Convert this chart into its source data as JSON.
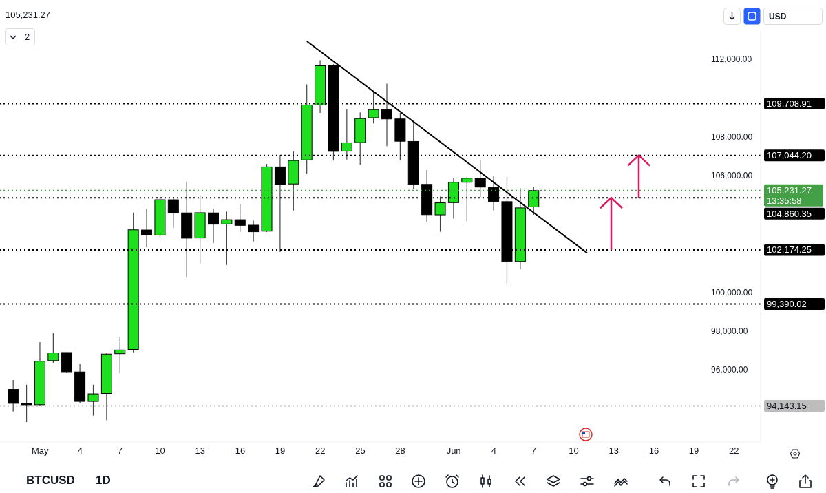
{
  "chart_data": {
    "type": "candlestick",
    "title": "105,231.27",
    "x": [
      "--04-29",
      "--04-30",
      "--05-01",
      "--05-02",
      "--05-03",
      "--05-04",
      "--05-05",
      "--05-06",
      "--05-07",
      "--05-08",
      "--05-09",
      "--05-10",
      "--05-11",
      "--05-12",
      "--05-13",
      "--05-14",
      "--05-15",
      "--05-16",
      "--05-17",
      "--05-18",
      "--05-19",
      "--05-20",
      "--05-21",
      "--05-22",
      "--05-23",
      "--05-24",
      "--05-25",
      "--05-26",
      "--05-27",
      "--05-28",
      "--05-29",
      "--05-30",
      "--05-31",
      "--06-01",
      "--06-02",
      "--06-03",
      "--06-04",
      "--06-05",
      "--06-06",
      "--06-07"
    ],
    "ohlc": [
      [
        94990,
        95475,
        93845,
        94270
      ],
      [
        94250,
        95230,
        93310,
        94200
      ],
      [
        94200,
        97430,
        94150,
        96440
      ],
      [
        96470,
        97890,
        96360,
        96870
      ],
      [
        96890,
        96900,
        95850,
        95900
      ],
      [
        95890,
        96290,
        94280,
        94370
      ],
      [
        94370,
        95230,
        93640,
        94760
      ],
      [
        94780,
        96880,
        93410,
        96810
      ],
      [
        96830,
        97700,
        95820,
        97020
      ],
      [
        97050,
        104100,
        96900,
        103210
      ],
      [
        103200,
        104300,
        102310,
        102940
      ],
      [
        102940,
        104890,
        102820,
        104760
      ],
      [
        104760,
        104890,
        103320,
        104080
      ],
      [
        104080,
        105690,
        100750,
        102780
      ],
      [
        102790,
        104940,
        101460,
        104090
      ],
      [
        104080,
        104300,
        102540,
        103500
      ],
      [
        103510,
        104150,
        101400,
        103730
      ],
      [
        103730,
        104510,
        103100,
        103440
      ],
      [
        103450,
        103680,
        102610,
        103110
      ],
      [
        103140,
        106600,
        103100,
        106450
      ],
      [
        106450,
        107070,
        102070,
        105540
      ],
      [
        105570,
        107250,
        104200,
        106780
      ],
      [
        106810,
        110700,
        106090,
        109640
      ],
      [
        109640,
        111940,
        109230,
        111660
      ],
      [
        111660,
        111740,
        106780,
        107250
      ],
      [
        107260,
        109420,
        106830,
        107690
      ],
      [
        107700,
        109260,
        106570,
        108940
      ],
      [
        108980,
        110350,
        108690,
        109400
      ],
      [
        109400,
        110740,
        107520,
        108920
      ],
      [
        108920,
        109230,
        106780,
        107770
      ],
      [
        107760,
        108810,
        105320,
        105550
      ],
      [
        105550,
        106280,
        103590,
        103990
      ],
      [
        103980,
        104920,
        103110,
        104600
      ],
      [
        104610,
        105860,
        103790,
        105660
      ],
      [
        105660,
        105930,
        103660,
        105870
      ],
      [
        105860,
        106820,
        104900,
        105410
      ],
      [
        105380,
        105970,
        104210,
        104660
      ],
      [
        104660,
        105930,
        100400,
        101580
      ],
      [
        101580,
        105360,
        101190,
        104340
      ],
      [
        104390,
        105400,
        103980,
        105231.27
      ]
    ],
    "colors": [
      "#000000",
      "#000000",
      "#1fe01f",
      "#1fe01f",
      "#000000",
      "#000000",
      "#1fe01f",
      "#1fe01f",
      "#1fe01f",
      "#1fe01f",
      "#000000",
      "#1fe01f",
      "#000000",
      "#000000",
      "#1fe01f",
      "#000000",
      "#1fe01f",
      "#000000",
      "#000000",
      "#1fe01f",
      "#000000",
      "#1fe01f",
      "#1fe01f",
      "#1fe01f",
      "#000000",
      "#1fe01f",
      "#1fe01f",
      "#1fe01f",
      "#000000",
      "#000000",
      "#000000",
      "#000000",
      "#1fe01f",
      "#1fe01f",
      "#1fe01f",
      "#000000",
      "#000000",
      "#000000",
      "#1fe01f",
      "#1fe01f"
    ],
    "series": [
      {
        "type": "line",
        "x": [
          "--05-21",
          "--06-11"
        ],
        "values": [
          112920,
          102020
        ],
        "color": "#000000"
      }
    ],
    "xlim": [
      "--04-28",
      "--06-24"
    ],
    "xticks": [
      {
        "value": "--05-01",
        "label": "May"
      },
      {
        "value": "--05-04",
        "label": "4"
      },
      {
        "value": "--05-07",
        "label": "7"
      },
      {
        "value": "--05-10",
        "label": "10"
      },
      {
        "value": "--05-13",
        "label": "13"
      },
      {
        "value": "--05-16",
        "label": "16"
      },
      {
        "value": "--05-19",
        "label": "19"
      },
      {
        "value": "--05-22",
        "label": "22"
      },
      {
        "value": "--05-25",
        "label": "25"
      },
      {
        "value": "--05-28",
        "label": "28"
      },
      {
        "value": "--06-01",
        "label": "Jun"
      },
      {
        "value": "--06-04",
        "label": "4"
      },
      {
        "value": "--06-07",
        "label": "7"
      },
      {
        "value": "--06-10",
        "label": "10"
      },
      {
        "value": "--06-13",
        "label": "13"
      },
      {
        "value": "--06-16",
        "label": "16"
      },
      {
        "value": "--06-19",
        "label": "19"
      },
      {
        "value": "--06-22",
        "label": "22"
      }
    ],
    "ylim": [
      92280,
      113450
    ],
    "yticks": [
      {
        "value": 96000,
        "label": "96,000.00"
      },
      {
        "value": 98000,
        "label": "98,000.00"
      },
      {
        "value": 100000,
        "label": "100,000.00"
      },
      {
        "value": 106000,
        "label": "106,000.00"
      },
      {
        "value": 108000,
        "label": "108,000.00"
      },
      {
        "value": 112000,
        "label": "112,000.00"
      }
    ],
    "ref_lines": [
      {
        "axis": "y",
        "value": 105231.27,
        "label": "105,231.27",
        "color": "#43a047",
        "line_style": "dotted"
      },
      {
        "axis": "y",
        "value": 109708.91,
        "label": "109,708.91",
        "color": "#000000",
        "line_style": "dotted"
      },
      {
        "axis": "y",
        "value": 107044.2,
        "label": "107,044.20",
        "color": "#000000",
        "line_style": "dotted"
      },
      {
        "axis": "y",
        "value": 104860.35,
        "label": "104,860.35",
        "color": "#000000",
        "line_style": "dotted"
      },
      {
        "axis": "y",
        "value": 102174.25,
        "label": "102,174.25",
        "color": "#000000",
        "line_style": "dotted"
      },
      {
        "axis": "y",
        "value": 99390.02,
        "label": "99,390.02",
        "color": "#000000",
        "line_style": "dotted"
      },
      {
        "axis": "y",
        "value": 94143.15,
        "label": "94,143.15",
        "color": "#bdbdbd",
        "line_style": "dotted"
      }
    ],
    "annotations": [
      "13:35:58",
      "BTCUSD",
      "1D",
      "2",
      "USD"
    ]
  }
}
